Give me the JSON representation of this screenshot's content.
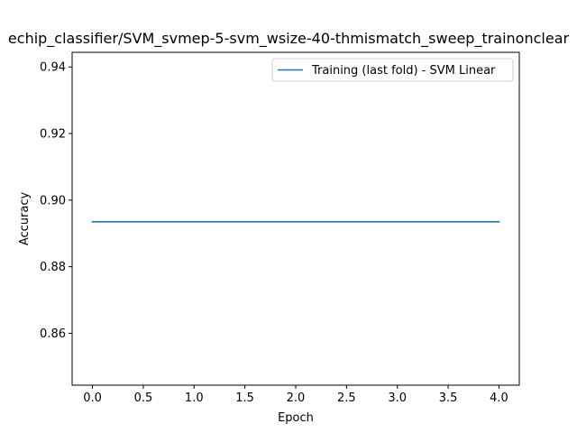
{
  "chart_data": {
    "type": "line",
    "title": "echip_classifier/SVM_svmep-5-svm_wsize-40-thmismatch_sweep_trainonclear",
    "xlabel": "Epoch",
    "ylabel": "Accuracy",
    "xlim": [
      -0.2,
      4.2
    ],
    "ylim": [
      0.8444,
      0.9444
    ],
    "x_ticks": [
      0.0,
      0.5,
      1.0,
      1.5,
      2.0,
      2.5,
      3.0,
      3.5,
      4.0
    ],
    "x_tick_labels": [
      "0.0",
      "0.5",
      "1.0",
      "1.5",
      "2.0",
      "2.5",
      "3.0",
      "3.5",
      "4.0"
    ],
    "y_ticks": [
      0.86,
      0.88,
      0.9,
      0.92,
      0.94
    ],
    "y_tick_labels": [
      "0.86",
      "0.88",
      "0.90",
      "0.92",
      "0.94"
    ],
    "grid": false,
    "legend_position": "upper right",
    "series": [
      {
        "name": "Training (last fold) - SVM Linear",
        "color": "#1f77b4",
        "x": [
          0,
          1,
          2,
          3,
          4
        ],
        "y": [
          0.8935,
          0.8935,
          0.8935,
          0.8935,
          0.8935
        ]
      }
    ]
  }
}
